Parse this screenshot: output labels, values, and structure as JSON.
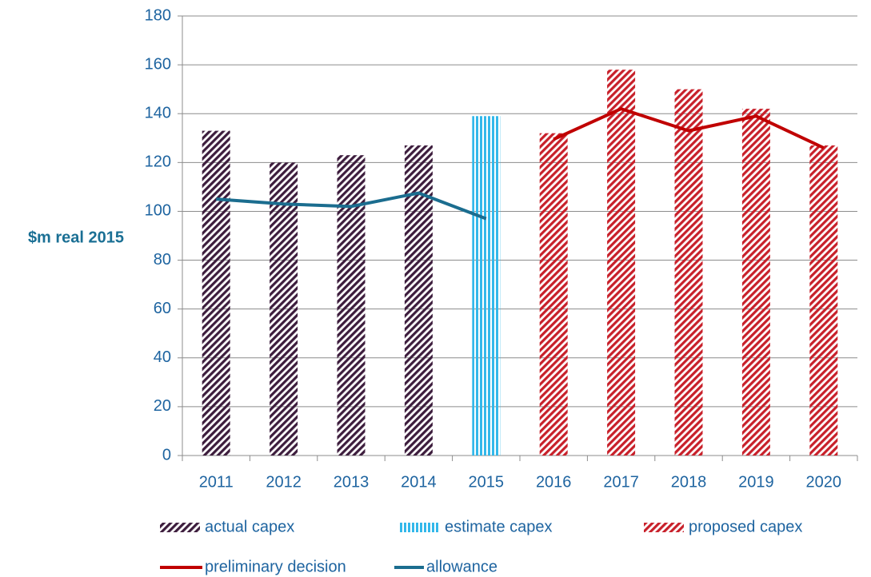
{
  "chart_data": {
    "type": "bar",
    "y_label": "$m real 2015",
    "categories": [
      "2011",
      "2012",
      "2013",
      "2014",
      "2015",
      "2016",
      "2017",
      "2018",
      "2019",
      "2020"
    ],
    "series": [
      {
        "name": "actual capex",
        "type": "bar",
        "pattern": "diagonal",
        "color": "#3d1d3d",
        "values": [
          133,
          120,
          123,
          127,
          null,
          null,
          null,
          null,
          null,
          null
        ]
      },
      {
        "name": "estimate capex",
        "type": "bar",
        "pattern": "vertical",
        "color": "#33b8ea",
        "values": [
          null,
          null,
          null,
          null,
          139,
          null,
          null,
          null,
          null,
          null
        ]
      },
      {
        "name": "proposed capex",
        "type": "bar",
        "pattern": "diagonal",
        "color": "#c8202a",
        "values": [
          null,
          null,
          null,
          null,
          null,
          132,
          158,
          150,
          142,
          127
        ]
      },
      {
        "name": "preliminary decision",
        "type": "line",
        "color": "#c00000",
        "values": [
          null,
          null,
          null,
          null,
          null,
          129.5,
          142,
          133,
          139,
          126
        ]
      },
      {
        "name": "allowance",
        "type": "line",
        "color": "#1b6d8f",
        "values": [
          105,
          103,
          102,
          107.5,
          97,
          null,
          null,
          null,
          null,
          null
        ]
      }
    ],
    "ylim": [
      0,
      180
    ],
    "yticks": [
      0,
      20,
      40,
      60,
      80,
      100,
      120,
      140,
      160,
      180
    ],
    "grid": true
  }
}
